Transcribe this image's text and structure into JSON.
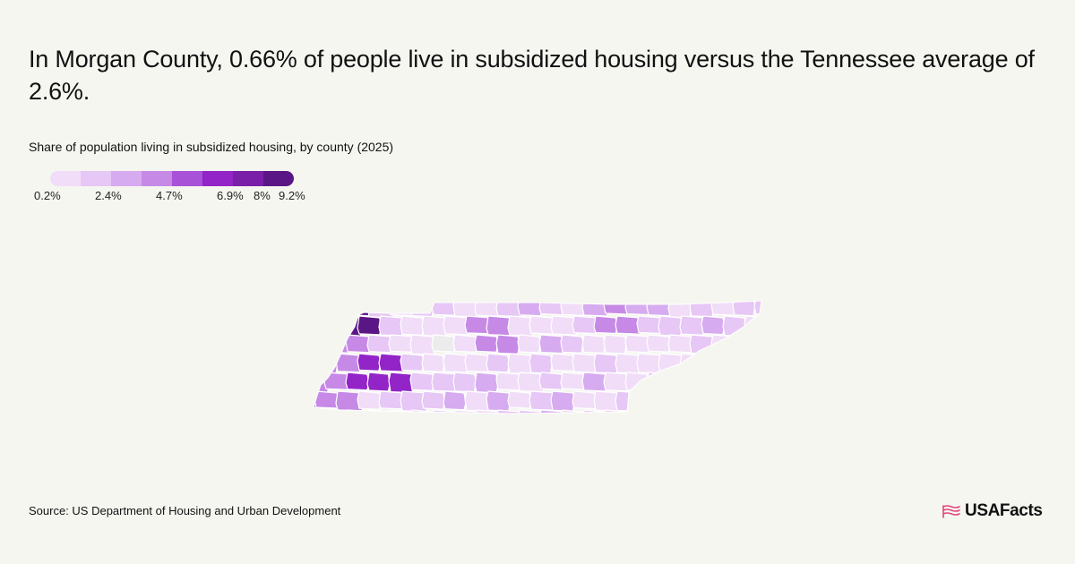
{
  "title": "In Morgan County, 0.66% of people live in subsidized housing versus the Tennessee average of 2.6%.",
  "subtitle": "Share of population living in subsidized housing, by county (2025)",
  "legend": {
    "colors": [
      "#f1ddf8",
      "#e6c7f5",
      "#d7abef",
      "#c68ae6",
      "#a752d7",
      "#9224c8",
      "#7a1fa8",
      "#5b1685"
    ],
    "labels": [
      "0.2%",
      "2.4%",
      "4.7%",
      "6.9%",
      "8%",
      "9.2%"
    ]
  },
  "map": {
    "region": "Tennessee",
    "highlight_county": "Morgan County",
    "highlight_value_pct": 0.66,
    "state_average_pct": 2.6,
    "no_data_color": "#ececec"
  },
  "source": "Source: US Department of Housing and Urban Development",
  "logo": {
    "text": "USAFacts",
    "icon": "us-flag-icon",
    "icon_color": "#e0467e"
  }
}
